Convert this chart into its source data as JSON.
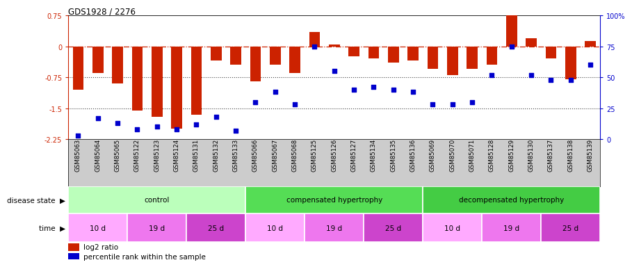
{
  "title": "GDS1928 / 2276",
  "samples": [
    "GSM85063",
    "GSM85064",
    "GSM85065",
    "GSM85122",
    "GSM85123",
    "GSM85124",
    "GSM85131",
    "GSM85132",
    "GSM85133",
    "GSM85066",
    "GSM85067",
    "GSM85068",
    "GSM85125",
    "GSM85126",
    "GSM85127",
    "GSM85134",
    "GSM85135",
    "GSM85136",
    "GSM85069",
    "GSM85070",
    "GSM85071",
    "GSM85128",
    "GSM85129",
    "GSM85130",
    "GSM85137",
    "GSM85138",
    "GSM85139"
  ],
  "log2_ratio": [
    -1.05,
    -0.65,
    -0.9,
    -1.55,
    -1.7,
    -2.0,
    -1.65,
    -0.35,
    -0.45,
    -0.85,
    -0.45,
    -0.65,
    0.35,
    0.05,
    -0.25,
    -0.3,
    -0.4,
    -0.35,
    -0.55,
    -0.7,
    -0.55,
    -0.45,
    0.75,
    0.2,
    -0.3,
    -0.8,
    0.12
  ],
  "percentile": [
    3,
    17,
    13,
    8,
    10,
    8,
    12,
    18,
    7,
    30,
    38,
    28,
    75,
    55,
    40,
    42,
    40,
    38,
    28,
    28,
    30,
    52,
    75,
    52,
    48,
    48,
    60
  ],
  "disease_state_groups": [
    {
      "label": "control",
      "start": 0,
      "end": 9,
      "color": "#bbffbb"
    },
    {
      "label": "compensated hypertrophy",
      "start": 9,
      "end": 18,
      "color": "#55dd55"
    },
    {
      "label": "decompensated hypertrophy",
      "start": 18,
      "end": 27,
      "color": "#44cc44"
    }
  ],
  "time_groups": [
    {
      "label": "10 d",
      "start": 0,
      "end": 3,
      "color": "#ffaaff"
    },
    {
      "label": "19 d",
      "start": 3,
      "end": 6,
      "color": "#ee77ee"
    },
    {
      "label": "25 d",
      "start": 6,
      "end": 9,
      "color": "#cc44cc"
    },
    {
      "label": "10 d",
      "start": 9,
      "end": 12,
      "color": "#ffaaff"
    },
    {
      "label": "19 d",
      "start": 12,
      "end": 15,
      "color": "#ee77ee"
    },
    {
      "label": "25 d",
      "start": 15,
      "end": 18,
      "color": "#cc44cc"
    },
    {
      "label": "10 d",
      "start": 18,
      "end": 21,
      "color": "#ffaaff"
    },
    {
      "label": "19 d",
      "start": 21,
      "end": 24,
      "color": "#ee77ee"
    },
    {
      "label": "25 d",
      "start": 24,
      "end": 27,
      "color": "#cc44cc"
    }
  ],
  "ylim_left": [
    -2.25,
    0.75
  ],
  "ylim_right": [
    0,
    100
  ],
  "yticks_left": [
    0.75,
    0,
    -0.75,
    -1.5,
    -2.25
  ],
  "yticks_right": [
    100,
    75,
    50,
    25,
    0
  ],
  "bar_color": "#cc2200",
  "dot_color": "#0000cc",
  "hline_color": "#cc2200",
  "dotted_color": "#444444",
  "bg_color": "#ffffff",
  "xtick_bg": "#cccccc"
}
